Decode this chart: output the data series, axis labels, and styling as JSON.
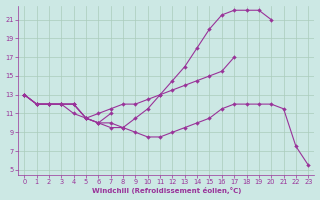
{
  "xlabel": "Windchill (Refroidissement éolien,°C)",
  "background_color": "#cce8e4",
  "grid_color": "#aaccbb",
  "line_color": "#993399",
  "xlim": [
    -0.5,
    23.5
  ],
  "ylim": [
    4.5,
    22.5
  ],
  "xticks": [
    0,
    1,
    2,
    3,
    4,
    5,
    6,
    7,
    8,
    9,
    10,
    11,
    12,
    13,
    14,
    15,
    16,
    17,
    18,
    19,
    20,
    21,
    22,
    23
  ],
  "yticks": [
    5,
    7,
    9,
    11,
    13,
    15,
    17,
    19,
    21
  ],
  "lines": [
    [
      13,
      12,
      12,
      12,
      12,
      10.5,
      11,
      11.5,
      12,
      12,
      12.5,
      13,
      13.5,
      14,
      14.5,
      15,
      15.5,
      17,
      null,
      null,
      null,
      null,
      null,
      null
    ],
    [
      13,
      12,
      12,
      12,
      12,
      10.5,
      10,
      9.5,
      9.5,
      10.5,
      11.5,
      13,
      14.5,
      16,
      18,
      20,
      21.5,
      22,
      22,
      22,
      21,
      null,
      null,
      null
    ],
    [
      13,
      12,
      12,
      12,
      11,
      10.5,
      10,
      10,
      9.5,
      9,
      8.5,
      8.5,
      9,
      9.5,
      10,
      10.5,
      11.5,
      12,
      12,
      12,
      12,
      11.5,
      7.5,
      5.5
    ],
    [
      13,
      12,
      12,
      12,
      12,
      10.5,
      10,
      11,
      null,
      null,
      null,
      null,
      null,
      null,
      null,
      null,
      null,
      null,
      null,
      null,
      null,
      null,
      null,
      null
    ]
  ]
}
